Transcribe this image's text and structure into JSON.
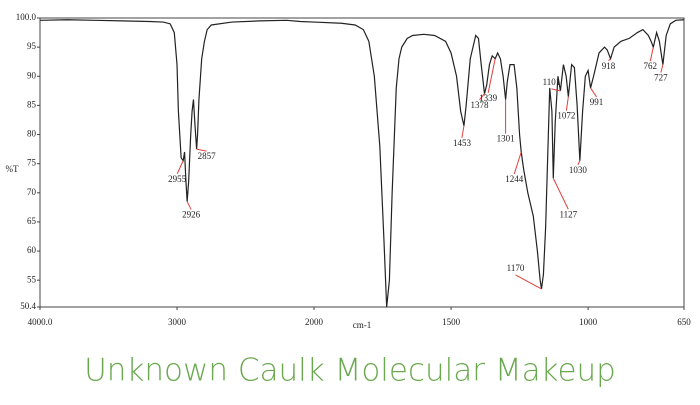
{
  "chart_data": {
    "type": "line",
    "title": "Unknown Caulk Molecular Makeup",
    "xlabel": "cm-1",
    "ylabel": "%T",
    "color": "#222222",
    "peak_color": "#e0403a",
    "xlim": [
      4000,
      650
    ],
    "ylim": [
      50.4,
      100.0
    ],
    "xticks": [
      {
        "value": 4000,
        "label": "4000.0"
      },
      3000,
      2000,
      1500,
      1000,
      650
    ],
    "yticks": [
      {
        "value": 100,
        "label": "100.0"
      },
      95,
      90,
      85,
      80,
      75,
      70,
      65,
      60,
      55,
      50.4
    ],
    "x": [
      4000,
      3800,
      3600,
      3400,
      3200,
      3100,
      3050,
      3020,
      3000,
      2990,
      2970,
      2955,
      2945,
      2935,
      2926,
      2915,
      2900,
      2890,
      2880,
      2870,
      2857,
      2850,
      2840,
      2820,
      2800,
      2780,
      2750,
      2600,
      2400,
      2200,
      2100,
      2000,
      1900,
      1850,
      1820,
      1800,
      1780,
      1760,
      1745,
      1735,
      1725,
      1715,
      1700,
      1690,
      1680,
      1660,
      1640,
      1600,
      1560,
      1520,
      1500,
      1480,
      1465,
      1453,
      1445,
      1430,
      1410,
      1400,
      1390,
      1378,
      1370,
      1360,
      1350,
      1339,
      1330,
      1320,
      1310,
      1301,
      1295,
      1285,
      1270,
      1260,
      1250,
      1244,
      1235,
      1220,
      1200,
      1185,
      1175,
      1170,
      1163,
      1155,
      1145,
      1140,
      1132,
      1127,
      1120,
      1110,
      1101,
      1090,
      1080,
      1072,
      1060,
      1050,
      1040,
      1030,
      1020,
      1010,
      1000,
      991,
      980,
      960,
      940,
      930,
      918,
      905,
      880,
      850,
      820,
      800,
      780,
      770,
      762,
      750,
      740,
      727,
      715,
      700,
      680,
      650
    ],
    "values": [
      99.6,
      99.7,
      99.6,
      99.5,
      99.4,
      99.3,
      99.0,
      97.5,
      92,
      84,
      76,
      75.5,
      77,
      72,
      68.5,
      72,
      80,
      84,
      86,
      82,
      77.5,
      80,
      86,
      93,
      96,
      98,
      98.8,
      99.3,
      99.5,
      99.6,
      99.4,
      99.3,
      99.1,
      98.8,
      98,
      96,
      90,
      78,
      62,
      50.4,
      55,
      70,
      88,
      93,
      95,
      96.5,
      97,
      97.2,
      97,
      96,
      94,
      90,
      84,
      81.5,
      85,
      93,
      97,
      96.5,
      92,
      87,
      88.5,
      92,
      93.5,
      93,
      94,
      93,
      90,
      86,
      89,
      92,
      92,
      88,
      80,
      77,
      74,
      70,
      66,
      60,
      55,
      53.5,
      56,
      64,
      80,
      88,
      84,
      72.5,
      82,
      90,
      87.5,
      92,
      90,
      86.5,
      92,
      91.5,
      85,
      75.5,
      84,
      90,
      91,
      88,
      90,
      94,
      95,
      94.5,
      93,
      95,
      96,
      96.5,
      97.5,
      98,
      97,
      96,
      95,
      97.5,
      96,
      92,
      97,
      99,
      99.6,
      99.7
    ],
    "peaks": [
      2955,
      2926,
      2857,
      1453,
      1378,
      1339,
      1301,
      1244,
      1170,
      1127,
      1101,
      1072,
      1030,
      991,
      918,
      762,
      727
    ]
  }
}
